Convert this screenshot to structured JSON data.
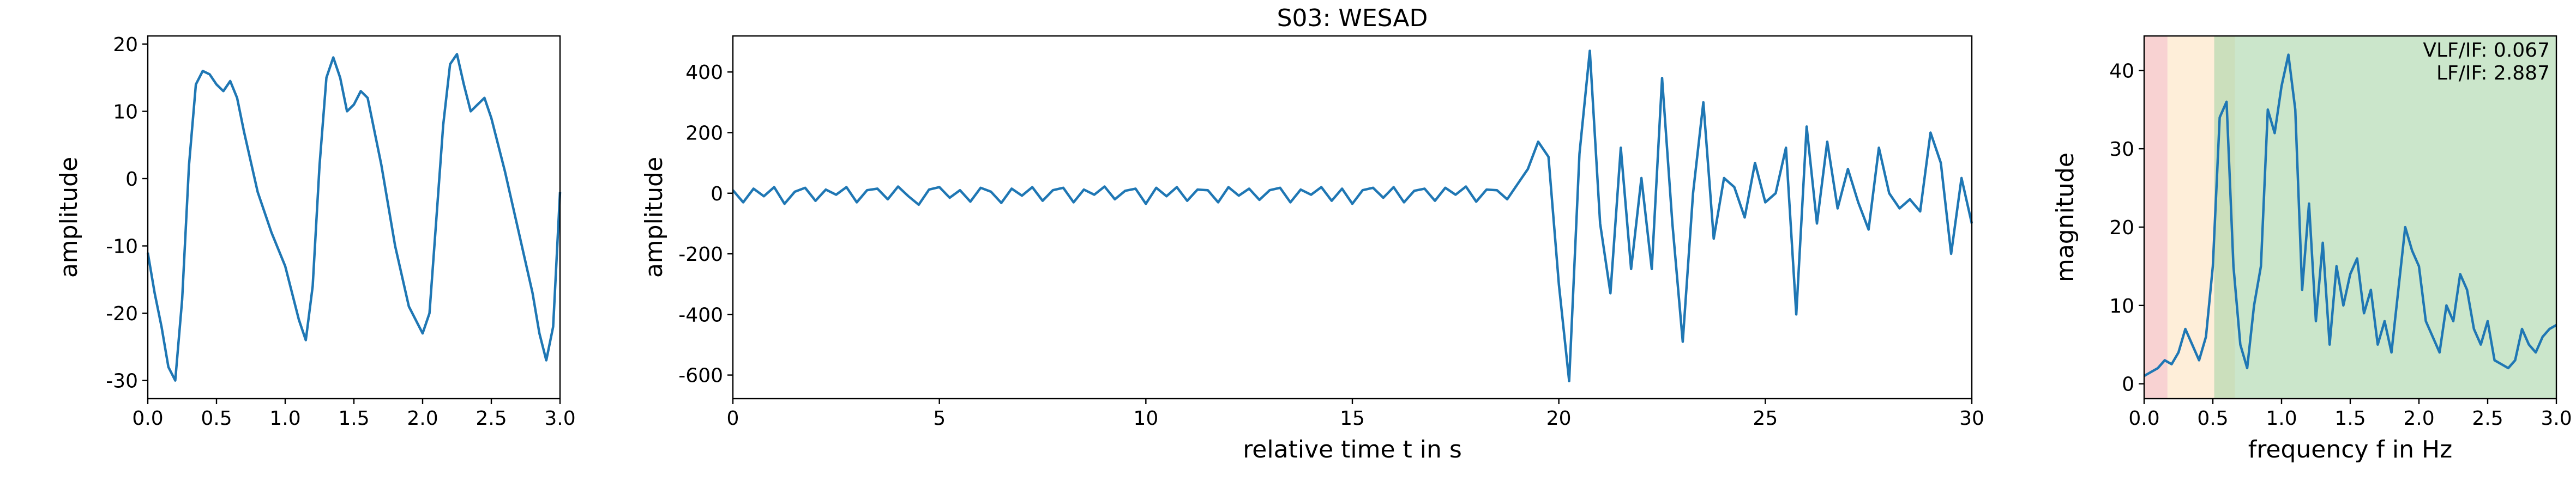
{
  "chart_data": [
    {
      "type": "line",
      "ylabel": "amplitude",
      "x": [
        0,
        0.05,
        0.1,
        0.15,
        0.2,
        0.25,
        0.3,
        0.35,
        0.4,
        0.45,
        0.5,
        0.55,
        0.6,
        0.65,
        0.7,
        0.8,
        0.9,
        1.0,
        1.1,
        1.15,
        1.2,
        1.25,
        1.3,
        1.35,
        1.4,
        1.45,
        1.5,
        1.55,
        1.6,
        1.7,
        1.8,
        1.9,
        2.0,
        2.05,
        2.1,
        2.15,
        2.2,
        2.25,
        2.3,
        2.35,
        2.4,
        2.45,
        2.5,
        2.6,
        2.7,
        2.8,
        2.85,
        2.9,
        2.95,
        3.0
      ],
      "series": [
        {
          "color": "#1f77b4",
          "values": [
            -11,
            -17,
            -22,
            -28,
            -30,
            -18,
            2,
            14,
            16,
            15.5,
            14,
            13,
            14.5,
            12,
            7,
            -2,
            -8,
            -13,
            -21,
            -24,
            -16,
            2,
            15,
            18,
            15,
            10,
            11,
            13,
            12,
            2,
            -10,
            -19,
            -23,
            -20,
            -6,
            8,
            17,
            18.5,
            14,
            10,
            11,
            12,
            9,
            1,
            -8,
            -17,
            -23,
            -27,
            -22,
            -2
          ]
        }
      ],
      "xlim": [
        0,
        3
      ],
      "ylim": [
        -32.7,
        21.2
      ],
      "xticks": [
        {
          "value": 0,
          "label": "0.0"
        },
        {
          "value": 0.5,
          "label": "0.5"
        },
        {
          "value": 1,
          "label": "1.0"
        },
        {
          "value": 1.5,
          "label": "1.5"
        },
        {
          "value": 2,
          "label": "2.0"
        },
        {
          "value": 2.5,
          "label": "2.5"
        },
        {
          "value": 3,
          "label": "3.0"
        }
      ],
      "yticks": [
        -30,
        -20,
        -10,
        0,
        10,
        20
      ]
    },
    {
      "type": "line",
      "title": "S03: WESAD",
      "xlabel": "relative time t in s",
      "ylabel": "amplitude",
      "x": [
        0,
        0.25,
        0.5,
        0.75,
        1,
        1.25,
        1.5,
        1.75,
        2,
        2.25,
        2.5,
        2.75,
        3,
        3.25,
        3.5,
        3.75,
        4,
        4.25,
        4.5,
        4.75,
        5,
        5.25,
        5.5,
        5.75,
        6,
        6.25,
        6.5,
        6.75,
        7,
        7.25,
        7.5,
        7.75,
        8,
        8.25,
        8.5,
        8.75,
        9,
        9.25,
        9.5,
        9.75,
        10,
        10.25,
        10.5,
        10.75,
        11,
        11.25,
        11.5,
        11.75,
        12,
        12.25,
        12.5,
        12.75,
        13,
        13.25,
        13.5,
        13.75,
        14,
        14.25,
        14.5,
        14.75,
        15,
        15.25,
        15.5,
        15.75,
        16,
        16.25,
        16.5,
        16.75,
        17,
        17.25,
        17.5,
        17.75,
        18,
        18.25,
        18.5,
        18.75,
        19,
        19.25,
        19.5,
        19.75,
        20,
        20.25,
        20.5,
        20.75,
        21,
        21.25,
        21.5,
        21.75,
        22,
        22.25,
        22.5,
        22.75,
        23,
        23.25,
        23.5,
        23.75,
        24,
        24.25,
        24.5,
        24.75,
        25,
        25.25,
        25.5,
        25.75,
        26,
        26.25,
        26.5,
        26.75,
        27,
        27.25,
        27.5,
        27.75,
        28,
        28.25,
        28.5,
        28.75,
        29,
        29.25,
        29.5,
        29.75,
        30
      ],
      "series": [
        {
          "color": "#1f77b4",
          "values": [
            10,
            -30,
            15,
            -10,
            20,
            -35,
            5,
            18,
            -25,
            12,
            -5,
            20,
            -30,
            10,
            15,
            -20,
            22,
            -10,
            -38,
            12,
            20,
            -15,
            10,
            -28,
            18,
            5,
            -32,
            15,
            -8,
            20,
            -25,
            10,
            18,
            -30,
            12,
            -5,
            22,
            -20,
            8,
            15,
            -35,
            18,
            -10,
            20,
            -25,
            12,
            10,
            -30,
            20,
            -8,
            15,
            -22,
            10,
            18,
            -30,
            12,
            -5,
            20,
            -25,
            15,
            -35,
            10,
            18,
            -15,
            20,
            -30,
            8,
            15,
            -25,
            18,
            -5,
            22,
            -28,
            12,
            10,
            -20,
            30,
            80,
            170,
            120,
            -300,
            -620,
            130,
            470,
            -100,
            -330,
            150,
            -250,
            50,
            -250,
            380,
            -100,
            -490,
            0,
            300,
            -150,
            50,
            20,
            -80,
            100,
            -30,
            0,
            150,
            -400,
            220,
            -100,
            170,
            -50,
            80,
            -30,
            -120,
            150,
            0,
            -50,
            -20,
            -60,
            200,
            100,
            -200,
            50,
            -100
          ]
        }
      ],
      "xlim": [
        0,
        30
      ],
      "ylim": [
        -678,
        519
      ],
      "xticks": [
        0,
        5,
        10,
        15,
        20,
        25,
        30
      ],
      "yticks": [
        -600,
        -400,
        -200,
        0,
        200,
        400
      ]
    },
    {
      "type": "line",
      "xlabel": "frequency f in Hz",
      "ylabel": "magnitude",
      "annotations": [
        "VLF/IF: 0.067",
        "LF/IF: 2.887"
      ],
      "bands": [
        {
          "range": [
            0,
            0.17
          ],
          "color": "#f4b4b4"
        },
        {
          "range": [
            0.17,
            0.66
          ],
          "color": "#fde3bf"
        },
        {
          "range": [
            0.51,
            3
          ],
          "color": "#a9d6a9"
        }
      ],
      "x": [
        0,
        0.05,
        0.1,
        0.15,
        0.2,
        0.25,
        0.3,
        0.35,
        0.4,
        0.45,
        0.5,
        0.55,
        0.6,
        0.65,
        0.7,
        0.75,
        0.8,
        0.85,
        0.9,
        0.95,
        1.0,
        1.05,
        1.1,
        1.15,
        1.2,
        1.25,
        1.3,
        1.35,
        1.4,
        1.45,
        1.5,
        1.55,
        1.6,
        1.65,
        1.7,
        1.75,
        1.8,
        1.85,
        1.9,
        1.95,
        2.0,
        2.05,
        2.1,
        2.15,
        2.2,
        2.25,
        2.3,
        2.35,
        2.4,
        2.45,
        2.5,
        2.55,
        2.6,
        2.65,
        2.7,
        2.75,
        2.8,
        2.85,
        2.9,
        2.95,
        3.0
      ],
      "series": [
        {
          "color": "#1f77b4",
          "values": [
            1,
            1.5,
            2,
            3,
            2.5,
            4,
            7,
            5,
            3,
            6,
            15,
            34,
            36,
            15,
            5,
            2,
            10,
            15,
            35,
            32,
            38,
            42,
            35,
            12,
            23,
            8,
            18,
            5,
            15,
            10,
            14,
            16,
            9,
            12,
            5,
            8,
            4,
            12,
            20,
            17,
            15,
            8,
            6,
            4,
            10,
            8,
            14,
            12,
            7,
            5,
            8,
            3,
            2.5,
            2,
            3,
            7,
            5,
            4,
            6,
            7,
            7.5
          ]
        }
      ],
      "xlim": [
        0,
        3
      ],
      "ylim": [
        -1.9,
        44.4
      ],
      "xticks": [
        {
          "value": 0,
          "label": "0.0"
        },
        {
          "value": 0.5,
          "label": "0.5"
        },
        {
          "value": 1,
          "label": "1.0"
        },
        {
          "value": 1.5,
          "label": "1.5"
        },
        {
          "value": 2,
          "label": "2.0"
        },
        {
          "value": 2.5,
          "label": "2.5"
        },
        {
          "value": 3,
          "label": "3.0"
        }
      ],
      "yticks": [
        0,
        10,
        20,
        30,
        40
      ]
    }
  ]
}
